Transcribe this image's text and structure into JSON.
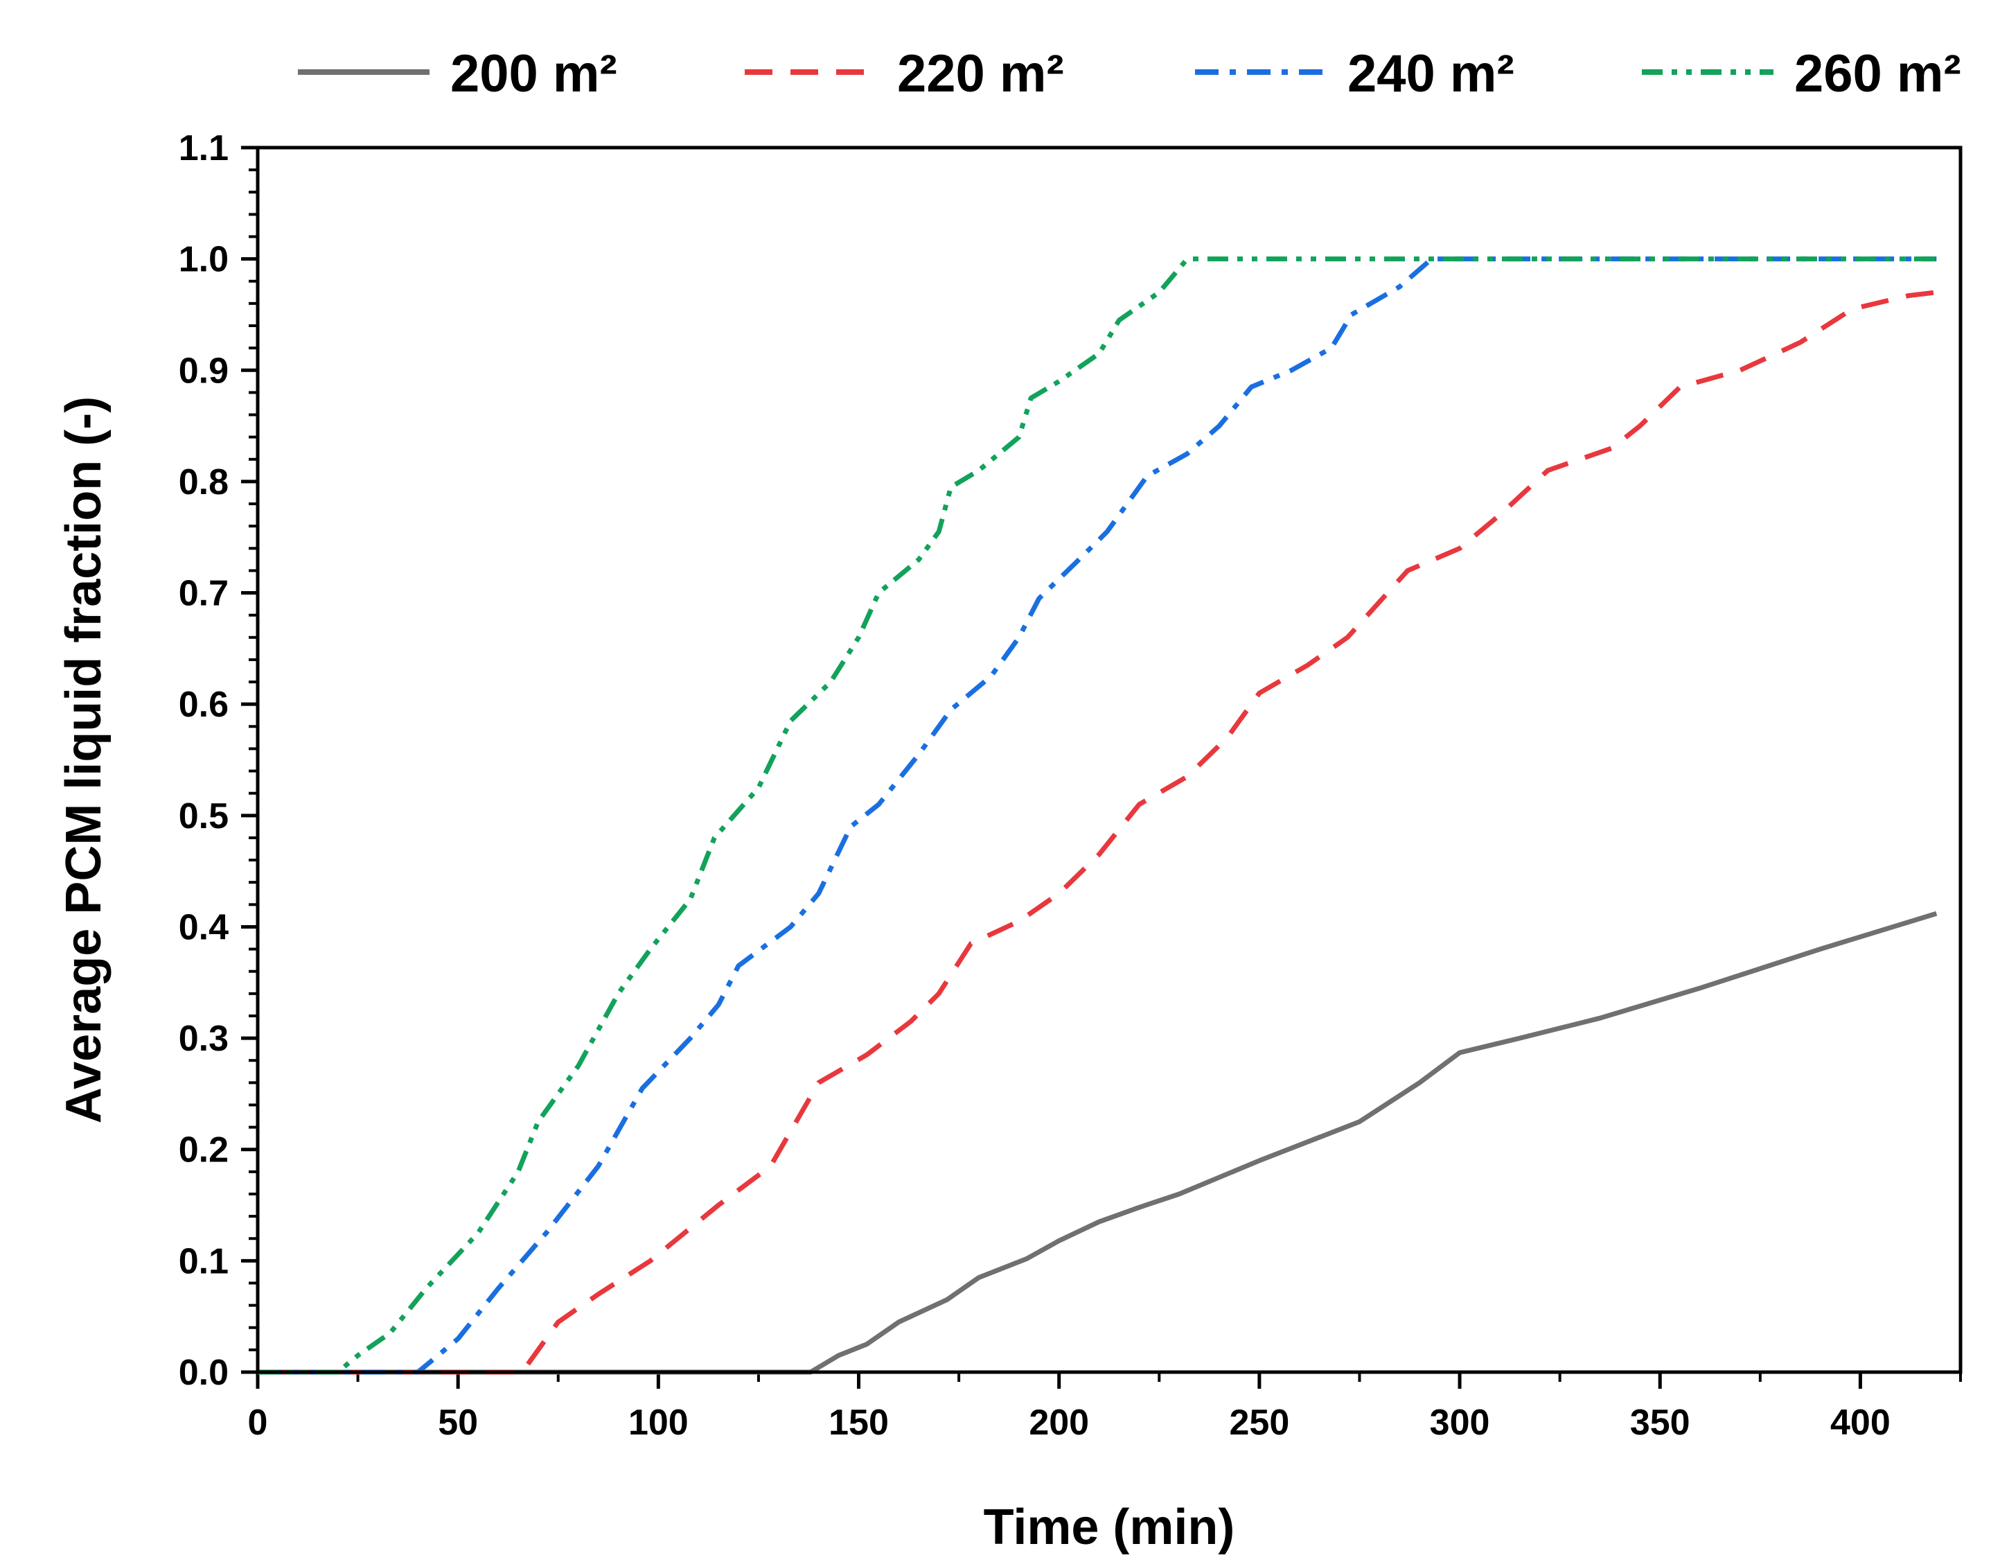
{
  "chart_data": {
    "type": "line",
    "title": "",
    "xlabel": "Time (min)",
    "ylabel": "Average PCM liquid fraction (-)",
    "xlim": [
      0,
      425
    ],
    "ylim": [
      0,
      1.1
    ],
    "xticks": [
      0,
      50,
      100,
      150,
      200,
      250,
      300,
      350,
      400
    ],
    "yticks": [
      0.0,
      0.1,
      0.2,
      0.3,
      0.4,
      0.5,
      0.6,
      0.7,
      0.8,
      0.9,
      1.0,
      1.1
    ],
    "xtick_labels": [
      "0",
      "50",
      "100",
      "150",
      "200",
      "250",
      "300",
      "350",
      "400"
    ],
    "ytick_labels": [
      "0.0",
      "0.1",
      "0.2",
      "0.3",
      "0.4",
      "0.5",
      "0.6",
      "0.7",
      "0.8",
      "0.9",
      "1.0",
      "1.1"
    ],
    "grid": false,
    "legend_position": "top",
    "series": [
      {
        "name": "200 m²",
        "color": "#707070",
        "style": "solid",
        "points": [
          [
            0,
            0
          ],
          [
            138,
            0
          ],
          [
            145,
            0.015
          ],
          [
            152,
            0.025
          ],
          [
            160,
            0.045
          ],
          [
            172,
            0.065
          ],
          [
            180,
            0.085
          ],
          [
            192,
            0.102
          ],
          [
            200,
            0.118
          ],
          [
            210,
            0.135
          ],
          [
            220,
            0.148
          ],
          [
            230,
            0.16
          ],
          [
            250,
            0.19
          ],
          [
            275,
            0.225
          ],
          [
            290,
            0.26
          ],
          [
            300,
            0.287
          ],
          [
            315,
            0.3
          ],
          [
            335,
            0.318
          ],
          [
            360,
            0.345
          ],
          [
            390,
            0.38
          ],
          [
            419,
            0.412
          ]
        ]
      },
      {
        "name": "220 m²",
        "color": "#e8383d",
        "style": "dashed",
        "points": [
          [
            0,
            0
          ],
          [
            66,
            0
          ],
          [
            75,
            0.045
          ],
          [
            85,
            0.07
          ],
          [
            98,
            0.1
          ],
          [
            115,
            0.15
          ],
          [
            128,
            0.185
          ],
          [
            140,
            0.26
          ],
          [
            152,
            0.285
          ],
          [
            163,
            0.315
          ],
          [
            170,
            0.34
          ],
          [
            178,
            0.385
          ],
          [
            190,
            0.405
          ],
          [
            200,
            0.43
          ],
          [
            210,
            0.465
          ],
          [
            220,
            0.51
          ],
          [
            232,
            0.535
          ],
          [
            242,
            0.57
          ],
          [
            250,
            0.61
          ],
          [
            262,
            0.635
          ],
          [
            272,
            0.66
          ],
          [
            287,
            0.72
          ],
          [
            300,
            0.74
          ],
          [
            310,
            0.77
          ],
          [
            322,
            0.81
          ],
          [
            338,
            0.83
          ],
          [
            345,
            0.85
          ],
          [
            355,
            0.885
          ],
          [
            370,
            0.9
          ],
          [
            385,
            0.925
          ],
          [
            398,
            0.955
          ],
          [
            412,
            0.967
          ],
          [
            419,
            0.97
          ]
        ]
      },
      {
        "name": "240 m²",
        "color": "#1a6fe0",
        "style": "dashdot",
        "points": [
          [
            0,
            0
          ],
          [
            40,
            0
          ],
          [
            50,
            0.03
          ],
          [
            60,
            0.075
          ],
          [
            72,
            0.125
          ],
          [
            85,
            0.185
          ],
          [
            96,
            0.255
          ],
          [
            108,
            0.3
          ],
          [
            115,
            0.33
          ],
          [
            120,
            0.365
          ],
          [
            133,
            0.4
          ],
          [
            140,
            0.43
          ],
          [
            148,
            0.49
          ],
          [
            155,
            0.51
          ],
          [
            165,
            0.555
          ],
          [
            173,
            0.595
          ],
          [
            183,
            0.625
          ],
          [
            190,
            0.66
          ],
          [
            195,
            0.695
          ],
          [
            205,
            0.73
          ],
          [
            212,
            0.755
          ],
          [
            222,
            0.805
          ],
          [
            232,
            0.825
          ],
          [
            240,
            0.85
          ],
          [
            248,
            0.885
          ],
          [
            258,
            0.9
          ],
          [
            268,
            0.92
          ],
          [
            273,
            0.95
          ],
          [
            285,
            0.975
          ],
          [
            293,
            1.0
          ],
          [
            419,
            1.0
          ]
        ]
      },
      {
        "name": "260 m²",
        "color": "#12a25a",
        "style": "dashdotdot",
        "points": [
          [
            0,
            0
          ],
          [
            20,
            0
          ],
          [
            25,
            0.015
          ],
          [
            33,
            0.035
          ],
          [
            42,
            0.075
          ],
          [
            55,
            0.125
          ],
          [
            65,
            0.18
          ],
          [
            70,
            0.225
          ],
          [
            80,
            0.275
          ],
          [
            90,
            0.34
          ],
          [
            98,
            0.38
          ],
          [
            108,
            0.425
          ],
          [
            114,
            0.48
          ],
          [
            125,
            0.525
          ],
          [
            133,
            0.585
          ],
          [
            143,
            0.62
          ],
          [
            150,
            0.66
          ],
          [
            155,
            0.7
          ],
          [
            165,
            0.73
          ],
          [
            170,
            0.755
          ],
          [
            173,
            0.795
          ],
          [
            180,
            0.81
          ],
          [
            190,
            0.84
          ],
          [
            193,
            0.875
          ],
          [
            200,
            0.89
          ],
          [
            210,
            0.915
          ],
          [
            215,
            0.945
          ],
          [
            225,
            0.97
          ],
          [
            232,
            1.0
          ],
          [
            419,
            1.0
          ]
        ]
      }
    ]
  }
}
